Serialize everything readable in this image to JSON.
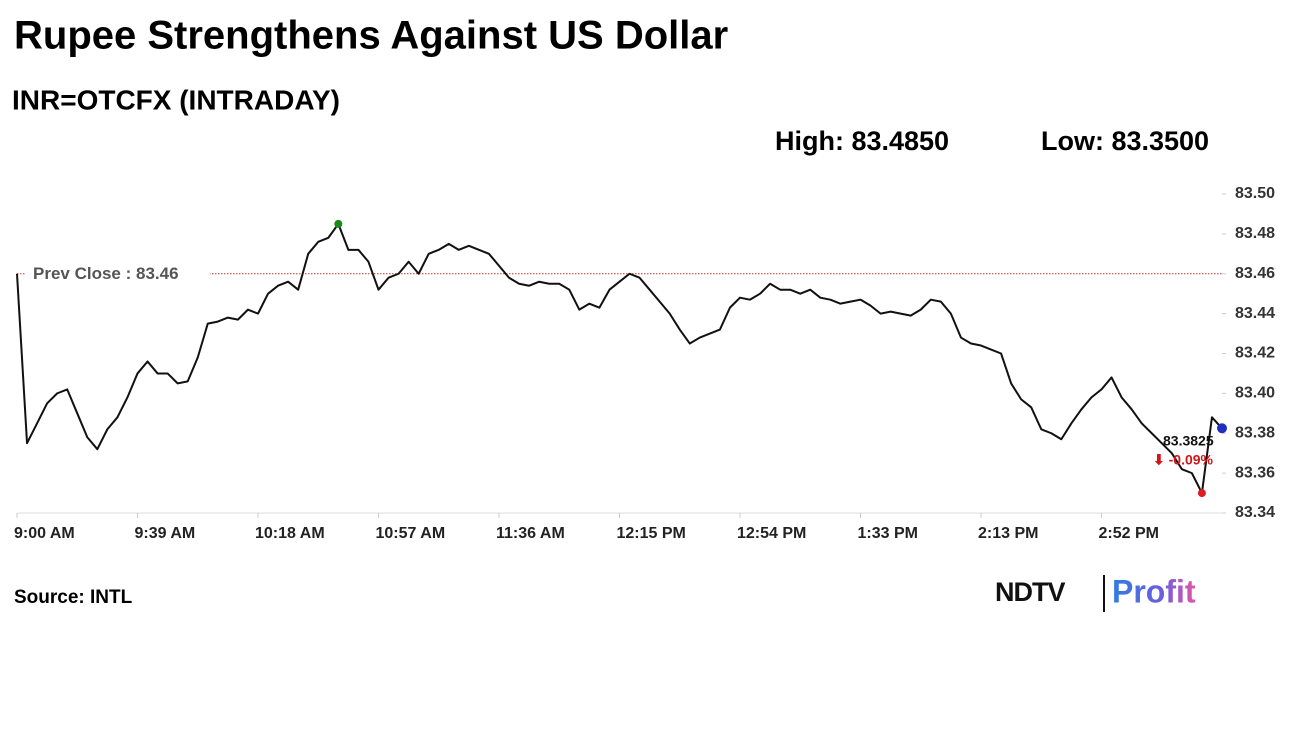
{
  "chart_data": {
    "type": "line",
    "title": "Rupee Strengthens Against US Dollar",
    "subtitle": "INR=OTCFX (INTRADAY)",
    "high_label": "High: 83.4850",
    "low_label": "Low: 83.3500",
    "prev_close": 83.46,
    "prev_close_label": "Prev Close : 83.46",
    "last_label": "83.3825",
    "change_label": "⬇ -0.09%",
    "source": "Source: INTL",
    "logo": {
      "left": "NDTV",
      "right": "Profit"
    },
    "color": "#111111",
    "ylim": [
      83.34,
      83.5
    ],
    "yticks": [
      {
        "value": 83.34,
        "label": "83.34"
      },
      {
        "value": 83.36,
        "label": "83.36"
      },
      {
        "value": 83.38,
        "label": "83.38"
      },
      {
        "value": 83.4,
        "label": "83.40"
      },
      {
        "value": 83.42,
        "label": "83.42"
      },
      {
        "value": 83.44,
        "label": "83.44"
      },
      {
        "value": 83.46,
        "label": "83.46"
      },
      {
        "value": 83.48,
        "label": "83.48"
      },
      {
        "value": 83.5,
        "label": "83.50"
      }
    ],
    "categories": [
      "9:00 AM",
      null,
      null,
      null,
      null,
      null,
      null,
      null,
      null,
      null,
      null,
      null,
      "9:39 AM",
      null,
      null,
      null,
      null,
      null,
      null,
      null,
      null,
      null,
      null,
      null,
      "10:18 AM",
      null,
      null,
      null,
      null,
      null,
      null,
      null,
      null,
      null,
      null,
      null,
      "10:57 AM",
      null,
      null,
      null,
      null,
      null,
      null,
      null,
      null,
      null,
      null,
      null,
      "11:36 AM",
      null,
      null,
      null,
      null,
      null,
      null,
      null,
      null,
      null,
      null,
      null,
      "12:15 PM",
      null,
      null,
      null,
      null,
      null,
      null,
      null,
      null,
      null,
      null,
      null,
      "12:54 PM",
      null,
      null,
      null,
      null,
      null,
      null,
      null,
      null,
      null,
      null,
      null,
      "1:33 PM",
      null,
      null,
      null,
      null,
      null,
      null,
      null,
      null,
      null,
      null,
      null,
      "2:13 PM",
      null,
      null,
      null,
      null,
      null,
      null,
      null,
      null,
      null,
      null,
      null,
      "2:52 PM",
      null,
      null,
      null,
      null,
      null,
      null,
      null,
      null,
      null,
      null,
      null,
      null
    ],
    "values": [
      83.46,
      83.375,
      83.385,
      83.395,
      83.4,
      83.402,
      83.39,
      83.378,
      83.372,
      83.382,
      83.388,
      83.398,
      83.41,
      83.416,
      83.41,
      83.41,
      83.405,
      83.406,
      83.418,
      83.435,
      83.436,
      83.438,
      83.437,
      83.442,
      83.44,
      83.45,
      83.454,
      83.456,
      83.452,
      83.47,
      83.476,
      83.478,
      83.485,
      83.472,
      83.472,
      83.466,
      83.452,
      83.458,
      83.46,
      83.466,
      83.46,
      83.47,
      83.472,
      83.475,
      83.472,
      83.474,
      83.472,
      83.47,
      83.464,
      83.458,
      83.455,
      83.454,
      83.456,
      83.455,
      83.455,
      83.452,
      83.442,
      83.445,
      83.443,
      83.452,
      83.456,
      83.46,
      83.458,
      83.452,
      83.446,
      83.44,
      83.432,
      83.425,
      83.428,
      83.43,
      83.432,
      83.443,
      83.448,
      83.447,
      83.45,
      83.455,
      83.452,
      83.452,
      83.45,
      83.452,
      83.448,
      83.447,
      83.445,
      83.446,
      83.447,
      83.444,
      83.44,
      83.441,
      83.44,
      83.439,
      83.442,
      83.447,
      83.446,
      83.44,
      83.428,
      83.425,
      83.424,
      83.422,
      83.42,
      83.405,
      83.397,
      83.393,
      83.382,
      83.38,
      83.377,
      83.385,
      83.392,
      83.398,
      83.402,
      83.408,
      83.398,
      83.392,
      83.385,
      83.38,
      83.375,
      83.37,
      83.362,
      83.36,
      83.35,
      83.388,
      83.3825
    ]
  }
}
